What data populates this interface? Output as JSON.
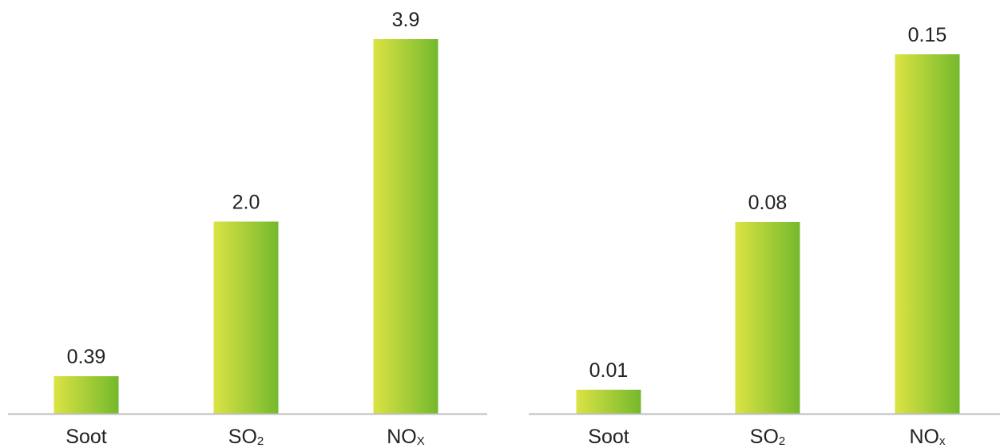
{
  "colors": {
    "bar_gradient_start": "#dbe344",
    "bar_gradient_end": "#74b92c",
    "axis": "#bdbdbd",
    "text": "#222222"
  },
  "chart_data": [
    {
      "type": "bar",
      "categories": [
        {
          "main": "Soot",
          "sub": ""
        },
        {
          "main": "SO",
          "sub": "2"
        },
        {
          "main": "NO",
          "sub": "X"
        }
      ],
      "values": [
        0.39,
        2.0,
        3.9
      ],
      "value_labels": [
        "0.39",
        "2.0",
        "3.9"
      ],
      "ylim": [
        0,
        3.9
      ],
      "grid": false,
      "title": "",
      "xlabel": "",
      "ylabel": ""
    },
    {
      "type": "bar",
      "categories": [
        {
          "main": "Soot",
          "sub": ""
        },
        {
          "main": "SO",
          "sub": "2"
        },
        {
          "main": "NO",
          "sub": "x"
        }
      ],
      "values": [
        0.01,
        0.08,
        0.15
      ],
      "value_labels": [
        "0.01",
        "0.08",
        "0.15"
      ],
      "ylim": [
        0,
        0.15
      ],
      "grid": false,
      "title": "",
      "xlabel": "",
      "ylabel": ""
    }
  ]
}
